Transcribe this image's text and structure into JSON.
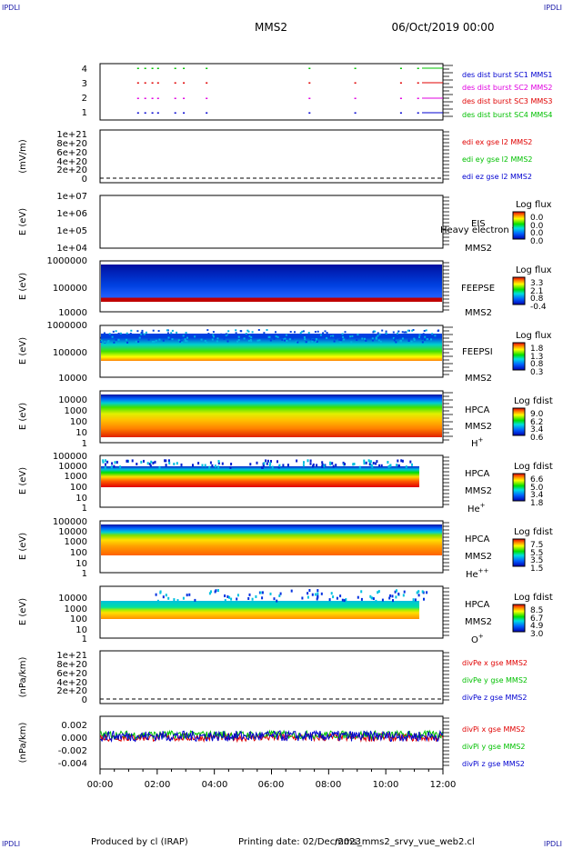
{
  "header": {
    "corner_tl": "IPDLI",
    "corner_tr": "IPDLI",
    "corner_bl": "IPDLI",
    "corner_br": "IPDLI",
    "mission": "MMS2",
    "datetime": "06/Oct/2019 00:00"
  },
  "footer": {
    "produced_by": "Produced by cl (IRAP)",
    "printing_date": "Printing date: 02/Dec/2023",
    "script": "mms_mms2_srvy_vue_web2.cl"
  },
  "colors": {
    "green": "#00c000",
    "magenta": "#e000e0",
    "red": "#e00000",
    "blue": "#0000d0"
  },
  "chart_data": {
    "type": "time-series-stack",
    "x_axis": {
      "range": [
        "00:00",
        "12:00"
      ],
      "tick_labels": [
        "00:00",
        "02:00",
        "04:00",
        "06:00",
        "08:00",
        "10:00",
        "12:00"
      ]
    },
    "panels": [
      {
        "id": "burst",
        "ylabel": "",
        "ytick_labels": [
          "1",
          "2",
          "3",
          "4"
        ],
        "yrange": [
          0.5,
          4.5
        ],
        "legend": [
          {
            "text": "des dist burst SC1 MMS1",
            "color": "#0000d0"
          },
          {
            "text": "des dist burst SC2 MMS2",
            "color": "#e000e0"
          },
          {
            "text": "des dist burst SC3 MMS3",
            "color": "#e00000"
          },
          {
            "text": "des dist burst SC4 MMS4",
            "color": "#00c000"
          }
        ],
        "burst_times_hours": [
          1.3,
          1.55,
          1.8,
          2.0,
          2.6,
          2.9,
          3.7,
          7.3,
          8.9,
          10.5,
          11.1
        ]
      },
      {
        "id": "edi",
        "ylabel": "(mV/m)",
        "ytick_labels": [
          "0",
          "2e+20",
          "4e+20",
          "6e+20",
          "8e+20",
          "1e+21"
        ],
        "legend": [
          {
            "text": "edi ex gse l2 MMS2",
            "color": "#e00000"
          },
          {
            "text": "edi ey gse l2 MMS2",
            "color": "#00c000"
          },
          {
            "text": "edi ez gse l2 MMS2",
            "color": "#0000d0"
          }
        ]
      },
      {
        "id": "eis",
        "ylabel": "E (eV)",
        "ytick_labels": [
          "1e+04",
          "1e+05",
          "1e+06",
          "1e+07"
        ],
        "inst": [
          "EIS",
          "MMS2"
        ],
        "overlay_text": "Heavy electron to",
        "cbar_title": "Log flux",
        "cbar_ticks": [
          "0.0",
          "0.0",
          "0.0",
          "0.0"
        ]
      },
      {
        "id": "feepse",
        "ylabel": "E (eV)",
        "ytick_labels": [
          "10000",
          "100000",
          "1000000"
        ],
        "inst": [
          "FEEPSE",
          "MMS2"
        ],
        "cbar_title": "Log flux",
        "cbar_ticks": [
          "3.3",
          "2.1",
          "0.8",
          "-0.4"
        ]
      },
      {
        "id": "feepsi",
        "ylabel": "E (eV)",
        "ytick_labels": [
          "10000",
          "100000",
          "1000000"
        ],
        "inst": [
          "FEEPSI",
          "MMS2"
        ],
        "cbar_title": "Log flux",
        "cbar_ticks": [
          "1.8",
          "1.3",
          "0.8",
          "0.3"
        ]
      },
      {
        "id": "hpca_h",
        "ylabel": "E (eV)",
        "ytick_labels": [
          "1",
          "10",
          "100",
          "1000",
          "10000"
        ],
        "inst": [
          "HPCA",
          "MMS2"
        ],
        "species": "H",
        "species_sup": "+",
        "cbar_title": "Log fdist",
        "cbar_ticks": [
          "9.0",
          "6.2",
          "3.4",
          "0.6"
        ]
      },
      {
        "id": "hpca_he1",
        "ylabel": "E (eV)",
        "ytick_labels": [
          "1",
          "10",
          "100",
          "1000",
          "10000",
          "100000"
        ],
        "inst": [
          "HPCA",
          "MMS2"
        ],
        "species": "He",
        "species_sup": "+",
        "cbar_title": "Log fdist",
        "cbar_ticks": [
          "6.6",
          "5.0",
          "3.4",
          "1.8"
        ]
      },
      {
        "id": "hpca_he2",
        "ylabel": "E (eV)",
        "ytick_labels": [
          "1",
          "10",
          "100",
          "1000",
          "10000",
          "100000"
        ],
        "inst": [
          "HPCA",
          "MMS2"
        ],
        "species": "He",
        "species_sup": "++",
        "cbar_title": "Log fdist",
        "cbar_ticks": [
          "7.5",
          "5.5",
          "3.5",
          "1.5"
        ]
      },
      {
        "id": "hpca_o",
        "ylabel": "E (eV)",
        "ytick_labels": [
          "1",
          "10",
          "100",
          "1000",
          "10000"
        ],
        "inst": [
          "HPCA",
          "MMS2"
        ],
        "species": "O",
        "species_sup": "+",
        "cbar_title": "Log fdist",
        "cbar_ticks": [
          "8.5",
          "6.7",
          "4.9",
          "3.0"
        ]
      },
      {
        "id": "divpe",
        "ylabel": "(nPa/km)",
        "ytick_labels": [
          "0",
          "2e+20",
          "4e+20",
          "6e+20",
          "8e+20",
          "1e+21"
        ],
        "legend": [
          {
            "text": "divPe x gse MMS2",
            "color": "#e00000"
          },
          {
            "text": "divPe y gse MMS2",
            "color": "#00c000"
          },
          {
            "text": "divPe z gse MMS2",
            "color": "#0000d0"
          }
        ]
      },
      {
        "id": "divpi",
        "ylabel": "(nPa/km)",
        "ytick_labels": [
          "-0.004",
          "-0.002",
          "0.000",
          "0.002"
        ],
        "yrange": [
          -0.005,
          0.003
        ],
        "legend": [
          {
            "text": "divPi x gse MMS2",
            "color": "#e00000"
          },
          {
            "text": "divPi y gse MMS2",
            "color": "#00c000"
          },
          {
            "text": "divPi z gse MMS2",
            "color": "#0000d0"
          }
        ]
      }
    ]
  }
}
